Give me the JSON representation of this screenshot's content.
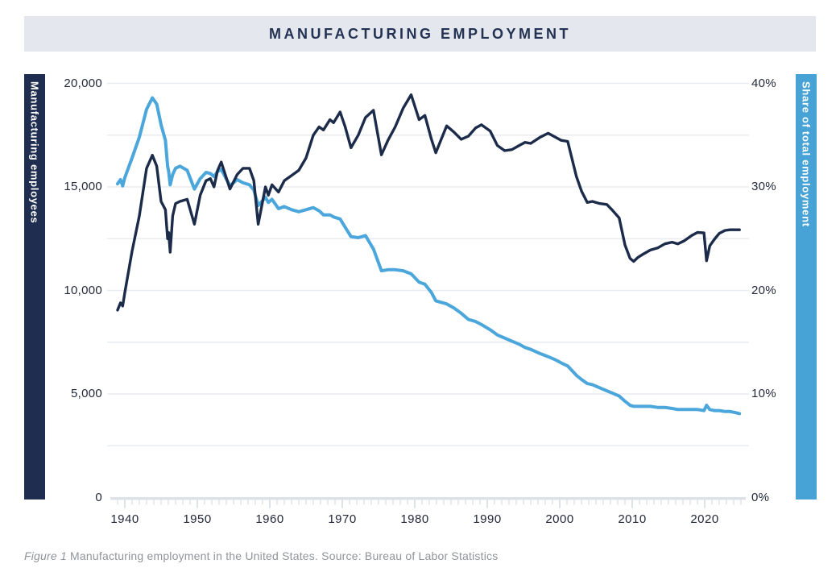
{
  "header": {
    "title": "MANUFACTURING EMPLOYMENT"
  },
  "caption": {
    "figure_label": "Figure 1",
    "text": " Manufacturing employment in the United States. Source: Bureau of Labor Statistics"
  },
  "colors": {
    "banner_bg": "#e4e8ee",
    "title_text": "#233252",
    "navy_line": "#1c2b49",
    "navy_bar": "#1e2d50",
    "blue_line": "#4ba6db",
    "blue_bar": "#47a3d6",
    "gridline": "#e8ebef",
    "axis_band": "#dde2e8",
    "tick_label": "#23293a",
    "caption_text": "#8f959b"
  },
  "chart_data": {
    "type": "line",
    "title": "MANUFACTURING EMPLOYMENT",
    "grid": "horizontal gridlines every 2,500 employees (5% share), legend none",
    "left_axis": {
      "title": "Manufacturing employees",
      "tick_labels": [
        "0",
        "5,000",
        "10,000",
        "15,000",
        "20,000"
      ],
      "tick_values": [
        0,
        5000,
        10000,
        15000,
        20000
      ],
      "range": [
        0,
        20000
      ]
    },
    "right_axis": {
      "title": "Share of total employment",
      "tick_labels": [
        "0%",
        "10%",
        "20%",
        "30%",
        "40%"
      ],
      "tick_values": [
        0,
        10,
        20,
        30,
        40
      ],
      "range": [
        0,
        40
      ]
    },
    "x_axis": {
      "tick_labels": [
        "1940",
        "1950",
        "1960",
        "1970",
        "1980",
        "1990",
        "2000",
        "2010",
        "2020"
      ],
      "tick_years": [
        1940,
        1950,
        1960,
        1970,
        1980,
        1990,
        2000,
        2010,
        2020
      ],
      "range": [
        1939,
        2025.3
      ]
    },
    "x": [
      1939.0,
      1939.4,
      1939.7,
      1940.0,
      1941.0,
      1942.0,
      1943.0,
      1943.8,
      1944.4,
      1945.0,
      1945.6,
      1945.9,
      1946.05,
      1946.25,
      1946.6,
      1947.0,
      1947.6,
      1948.6,
      1949.6,
      1950.4,
      1951.2,
      1951.8,
      1952.3,
      1952.8,
      1953.3,
      1954.5,
      1955.5,
      1956.3,
      1957.2,
      1957.8,
      1958.4,
      1959.4,
      1959.8,
      1960.3,
      1961.2,
      1962.0,
      1963.0,
      1964.0,
      1965.0,
      1966.0,
      1966.8,
      1967.4,
      1968.3,
      1968.8,
      1969.7,
      1970.4,
      1971.2,
      1972.2,
      1973.2,
      1974.3,
      1975.4,
      1976.3,
      1977.3,
      1978.4,
      1979.5,
      1980.6,
      1981.4,
      1982.3,
      1982.9,
      1984.4,
      1985.4,
      1986.4,
      1987.4,
      1988.4,
      1989.2,
      1990.4,
      1991.4,
      1992.4,
      1993.4,
      1994.4,
      1995.2,
      1996.0,
      1997.3,
      1998.4,
      1999.4,
      2000.2,
      2001.1,
      2002.3,
      2003.0,
      2003.8,
      2004.5,
      2005.5,
      2006.5,
      2007.2,
      2008.2,
      2009.0,
      2009.7,
      2010.2,
      2010.8,
      2011.5,
      2012.5,
      2013.5,
      2014.5,
      2015.5,
      2016.3,
      2017.2,
      2018.2,
      2019.0,
      2019.9,
      2020.25,
      2020.7,
      2021.3,
      2022.0,
      2022.8,
      2023.5,
      2024.2,
      2024.8
    ],
    "series": [
      {
        "name": "Manufacturing employees",
        "units": "thousands",
        "axis": "left",
        "color": "#1c2b49",
        "values": [
          9050,
          9400,
          9250,
          9900,
          11900,
          13600,
          15900,
          16530,
          16000,
          14300,
          13900,
          12500,
          12800,
          11850,
          13600,
          14200,
          14300,
          14400,
          13200,
          14600,
          15300,
          15400,
          15000,
          15800,
          16200,
          14900,
          15600,
          15900,
          15900,
          15300,
          13200,
          15000,
          14600,
          15100,
          14750,
          15300,
          15550,
          15800,
          16400,
          17500,
          17900,
          17750,
          18250,
          18100,
          18620,
          17900,
          16890,
          17500,
          18350,
          18700,
          16550,
          17250,
          17900,
          18800,
          19450,
          18250,
          18450,
          17300,
          16650,
          17950,
          17650,
          17300,
          17450,
          17850,
          18000,
          17700,
          17000,
          16750,
          16800,
          17000,
          17150,
          17100,
          17400,
          17590,
          17400,
          17250,
          17200,
          15500,
          14800,
          14250,
          14300,
          14200,
          14150,
          13900,
          13500,
          12200,
          11550,
          11400,
          11600,
          11750,
          11950,
          12050,
          12250,
          12330,
          12250,
          12400,
          12650,
          12800,
          12780,
          11430,
          12150,
          12450,
          12750,
          12900,
          12930,
          12930,
          12930
        ]
      },
      {
        "name": "Share of total employment",
        "units": "percent",
        "axis": "right",
        "color": "#4ba6db",
        "values": [
          30.3,
          30.7,
          30.1,
          30.9,
          32.8,
          34.8,
          37.5,
          38.6,
          38.0,
          36.0,
          34.5,
          32.0,
          31.5,
          30.2,
          31.2,
          31.8,
          32.0,
          31.6,
          29.8,
          30.8,
          31.4,
          31.3,
          31.0,
          31.5,
          31.7,
          30.1,
          30.7,
          30.4,
          30.2,
          29.7,
          28.2,
          29.0,
          28.5,
          28.8,
          27.9,
          28.1,
          27.8,
          27.6,
          27.8,
          28.0,
          27.7,
          27.3,
          27.3,
          27.1,
          26.9,
          26.1,
          25.2,
          25.1,
          25.3,
          24.0,
          21.9,
          22.0,
          22.0,
          21.9,
          21.6,
          20.8,
          20.6,
          19.8,
          19.0,
          18.7,
          18.3,
          17.8,
          17.2,
          17.0,
          16.7,
          16.2,
          15.7,
          15.4,
          15.1,
          14.8,
          14.5,
          14.3,
          13.9,
          13.6,
          13.3,
          13.0,
          12.7,
          11.8,
          11.4,
          11.0,
          10.9,
          10.6,
          10.3,
          10.1,
          9.8,
          9.3,
          8.9,
          8.8,
          8.8,
          8.8,
          8.8,
          8.7,
          8.7,
          8.6,
          8.5,
          8.5,
          8.5,
          8.5,
          8.4,
          8.9,
          8.5,
          8.4,
          8.4,
          8.3,
          8.3,
          8.2,
          8.1
        ]
      }
    ]
  }
}
